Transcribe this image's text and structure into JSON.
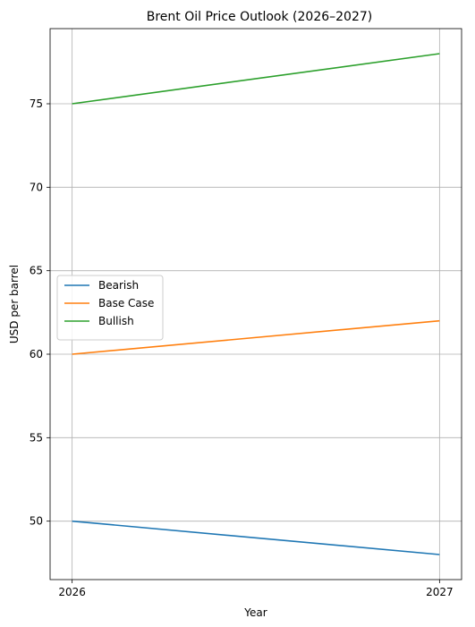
{
  "chart_data": {
    "type": "line",
    "title": "Brent Oil Price Outlook (2026–2027)",
    "xlabel": "Year",
    "ylabel": "USD per barrel",
    "x": [
      2026,
      2027
    ],
    "x_tick_labels": [
      "2026",
      "2027"
    ],
    "y_ticks": [
      50,
      55,
      60,
      65,
      70,
      75
    ],
    "y_tick_labels": [
      "50",
      "55",
      "60",
      "65",
      "70",
      "75"
    ],
    "xlim": [
      2025.94,
      2027.06
    ],
    "ylim": [
      46.5,
      79.5
    ],
    "grid": true,
    "legend_position": "center-left",
    "series": [
      {
        "name": "Bearish",
        "color": "#1f77b4",
        "values": [
          50,
          48
        ]
      },
      {
        "name": "Base Case",
        "color": "#ff7f0e",
        "values": [
          60,
          62
        ]
      },
      {
        "name": "Bullish",
        "color": "#2ca02c",
        "values": [
          75,
          78
        ]
      }
    ]
  }
}
